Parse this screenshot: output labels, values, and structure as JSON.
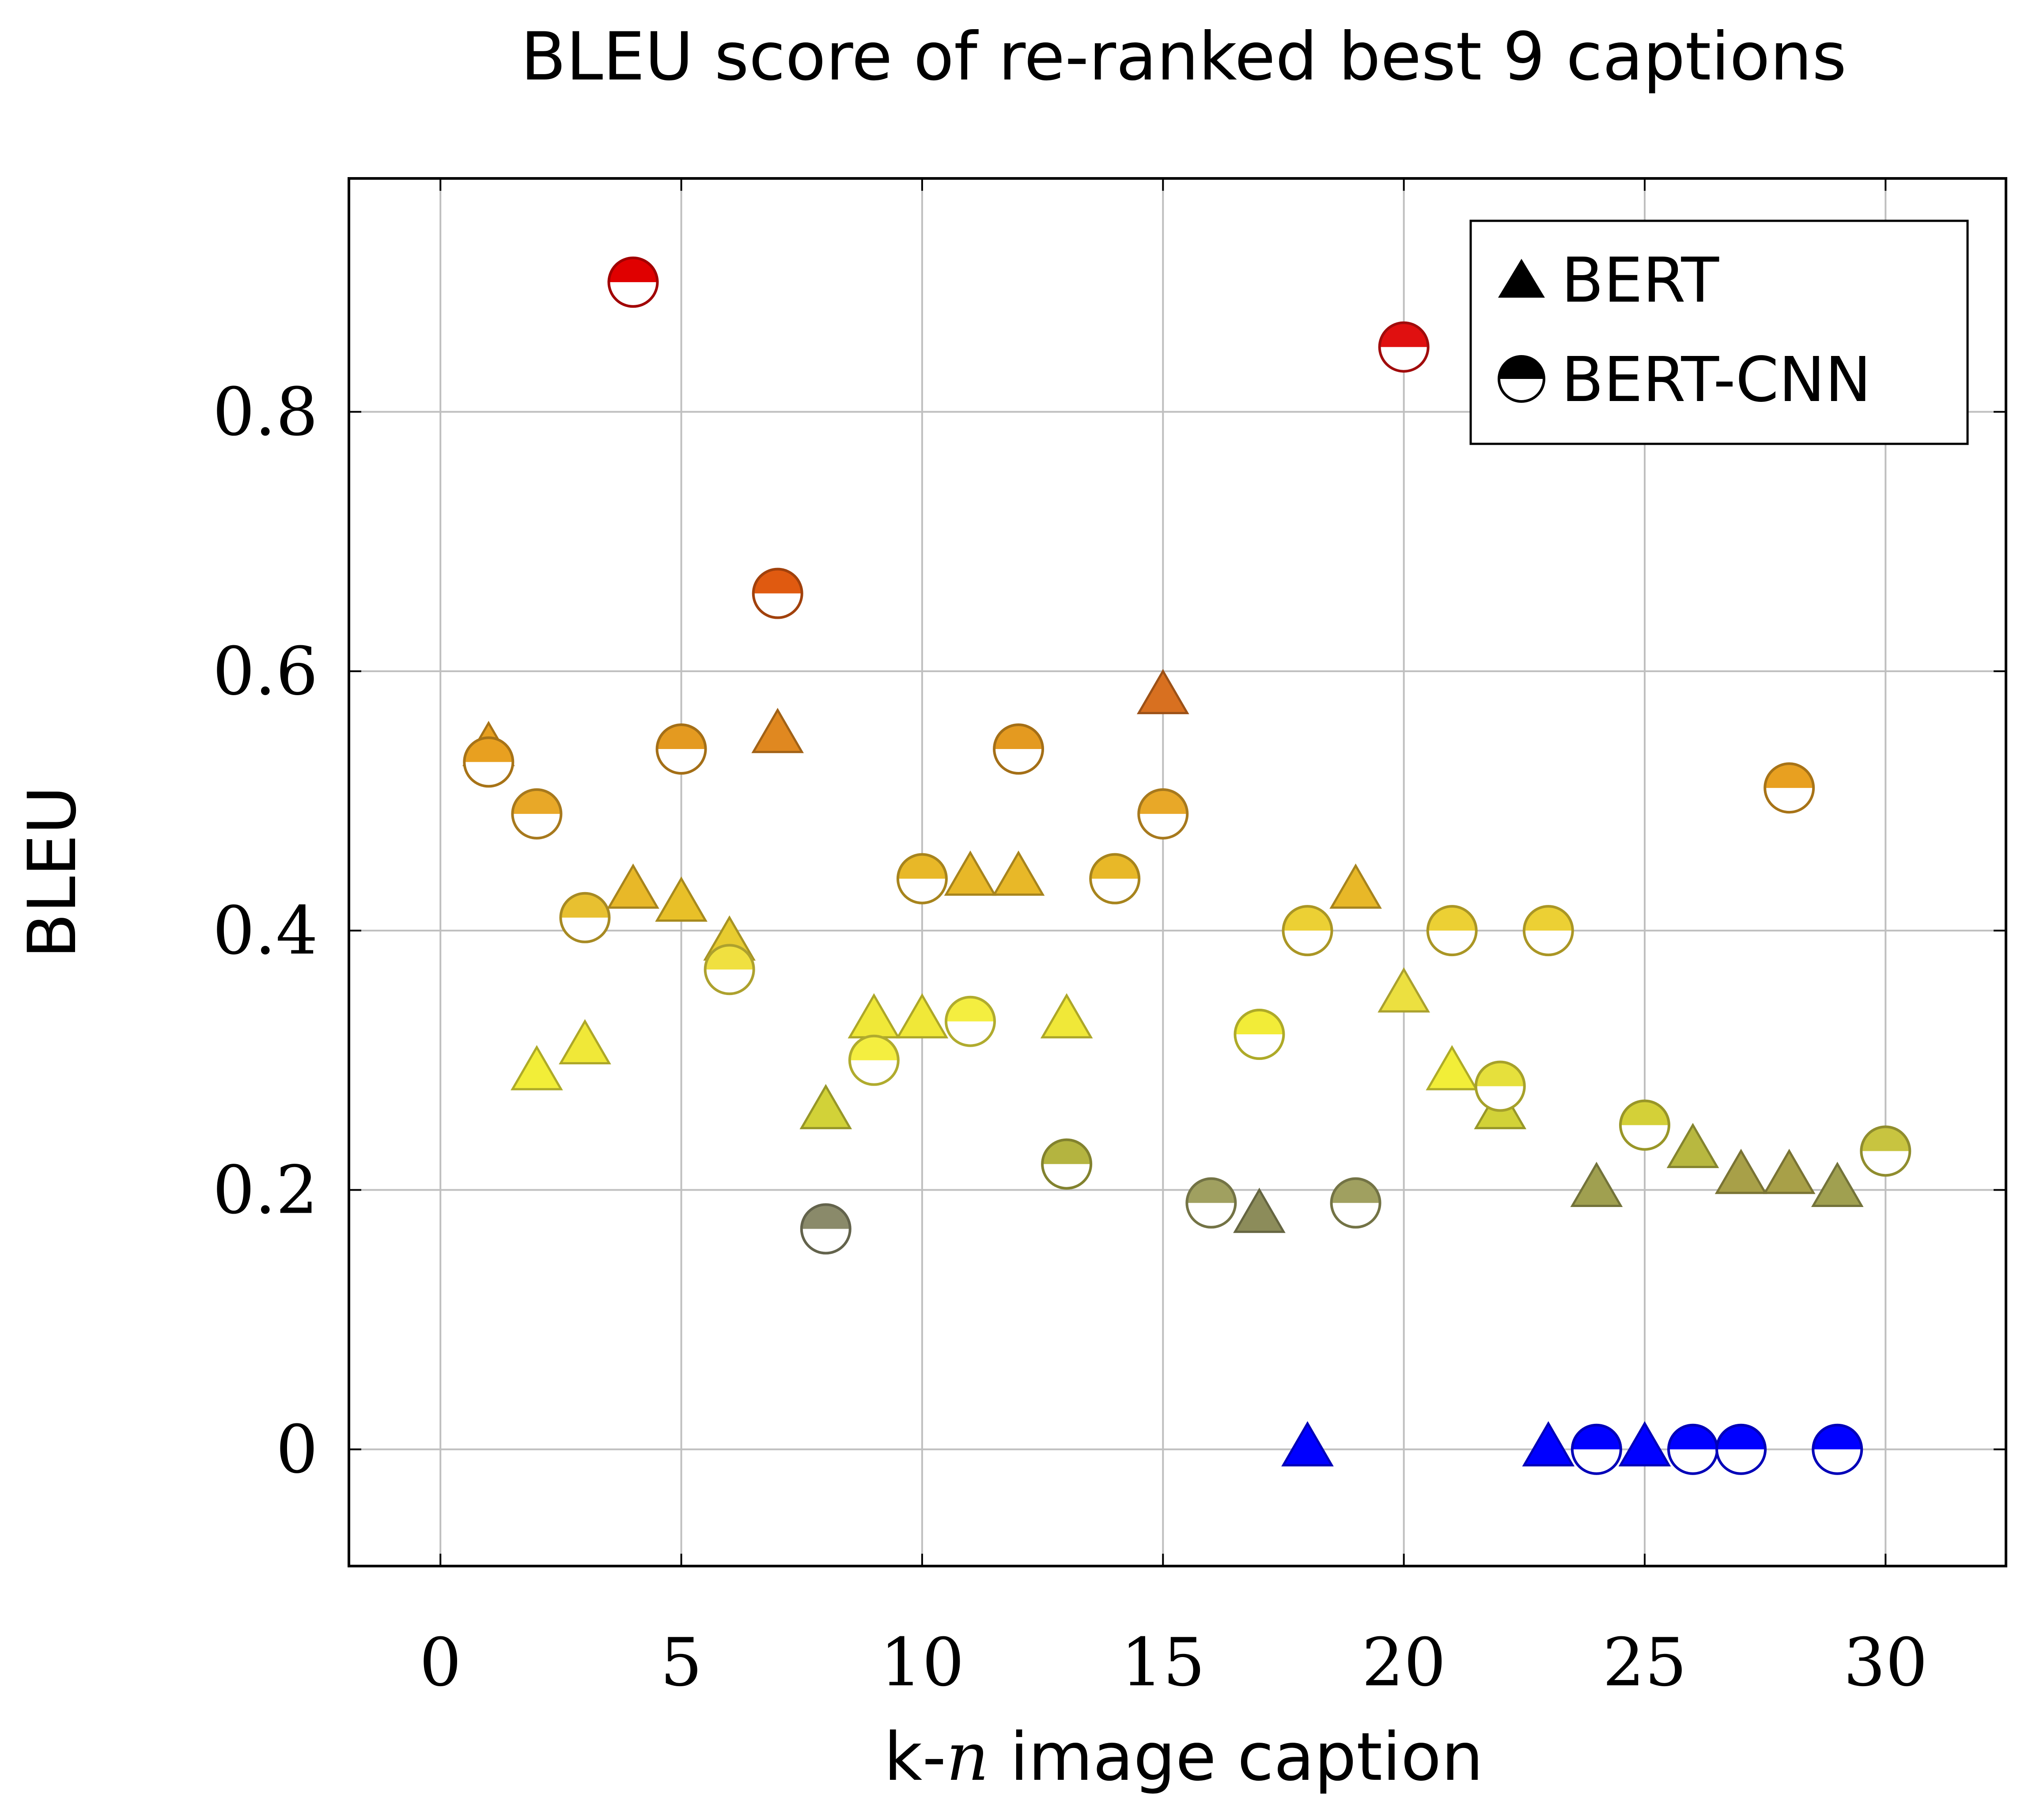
{
  "chart_data": {
    "type": "scatter",
    "title": "BLEU score of re-ranked best 9 captions",
    "xlabel_prefix": "k-",
    "xlabel_var": "n",
    "xlabel_suffix": " image caption",
    "ylabel": "BLEU",
    "xlim": [
      -1.9,
      32.5
    ],
    "ylim": [
      -0.09,
      0.98
    ],
    "xticks": [
      0,
      5,
      10,
      15,
      20,
      25,
      30
    ],
    "yticks": [
      0,
      0.2,
      0.4,
      0.6,
      0.8
    ],
    "ytick_labels": [
      "0",
      "0.2",
      "0.4",
      "0.6",
      "0.8"
    ],
    "grid": true,
    "legend_position": "top-right",
    "series": [
      {
        "name": "BERT",
        "marker": "triangle",
        "points": [
          {
            "x": 1,
            "y": 0.54,
            "color": "#e8a020"
          },
          {
            "x": 2,
            "y": 0.29,
            "color": "#f2ee38"
          },
          {
            "x": 3,
            "y": 0.31,
            "color": "#f0e838"
          },
          {
            "x": 4,
            "y": 0.43,
            "color": "#e8b828"
          },
          {
            "x": 5,
            "y": 0.42,
            "color": "#e8c028"
          },
          {
            "x": 6,
            "y": 0.39,
            "color": "#e8cc30"
          },
          {
            "x": 7,
            "y": 0.55,
            "color": "#e08820"
          },
          {
            "x": 8,
            "y": 0.26,
            "color": "#d2d238"
          },
          {
            "x": 9,
            "y": 0.33,
            "color": "#f0e838"
          },
          {
            "x": 10,
            "y": 0.33,
            "color": "#f0e838"
          },
          {
            "x": 11,
            "y": 0.44,
            "color": "#e8b828"
          },
          {
            "x": 12,
            "y": 0.44,
            "color": "#e8b828"
          },
          {
            "x": 13,
            "y": 0.33,
            "color": "#f0e838"
          },
          {
            "x": 15,
            "y": 0.58,
            "color": "#d87020"
          },
          {
            "x": 17,
            "y": 0.18,
            "color": "#8c8c5a"
          },
          {
            "x": 18,
            "y": 0.0,
            "color": "#0000ff"
          },
          {
            "x": 19,
            "y": 0.43,
            "color": "#e8b828"
          },
          {
            "x": 20,
            "y": 0.35,
            "color": "#ece040"
          },
          {
            "x": 21,
            "y": 0.29,
            "color": "#f2ee38"
          },
          {
            "x": 22,
            "y": 0.26,
            "color": "#d2d238"
          },
          {
            "x": 23,
            "y": 0.0,
            "color": "#0000ff"
          },
          {
            "x": 24,
            "y": 0.2,
            "color": "#a0a050"
          },
          {
            "x": 25,
            "y": 0.0,
            "color": "#0000ff"
          },
          {
            "x": 26,
            "y": 0.23,
            "color": "#b8b840"
          },
          {
            "x": 27,
            "y": 0.21,
            "color": "#a8a048"
          },
          {
            "x": 28,
            "y": 0.21,
            "color": "#a8a048"
          },
          {
            "x": 29,
            "y": 0.2,
            "color": "#a0a050"
          }
        ]
      },
      {
        "name": "BERT-CNN",
        "marker": "half-circle",
        "points": [
          {
            "x": 1,
            "y": 0.53,
            "color": "#e8a020"
          },
          {
            "x": 2,
            "y": 0.49,
            "color": "#e8a828"
          },
          {
            "x": 3,
            "y": 0.41,
            "color": "#e8c030"
          },
          {
            "x": 4,
            "y": 0.9,
            "color": "#e00000"
          },
          {
            "x": 5,
            "y": 0.54,
            "color": "#e49a20"
          },
          {
            "x": 6,
            "y": 0.37,
            "color": "#f0e040"
          },
          {
            "x": 7,
            "y": 0.66,
            "color": "#e05a10"
          },
          {
            "x": 8,
            "y": 0.17,
            "color": "#8a8a6a"
          },
          {
            "x": 9,
            "y": 0.3,
            "color": "#f4ee40"
          },
          {
            "x": 10,
            "y": 0.44,
            "color": "#e8b828"
          },
          {
            "x": 11,
            "y": 0.33,
            "color": "#f4ee40"
          },
          {
            "x": 12,
            "y": 0.54,
            "color": "#e49a20"
          },
          {
            "x": 13,
            "y": 0.22,
            "color": "#b4b440"
          },
          {
            "x": 14,
            "y": 0.44,
            "color": "#e8b828"
          },
          {
            "x": 15,
            "y": 0.49,
            "color": "#e8a828"
          },
          {
            "x": 16,
            "y": 0.19,
            "color": "#a0a060"
          },
          {
            "x": 17,
            "y": 0.32,
            "color": "#f2ec38"
          },
          {
            "x": 18,
            "y": 0.4,
            "color": "#ecd034"
          },
          {
            "x": 19,
            "y": 0.19,
            "color": "#a0a060"
          },
          {
            "x": 20,
            "y": 0.85,
            "color": "#e01010"
          },
          {
            "x": 21,
            "y": 0.4,
            "color": "#ecd034"
          },
          {
            "x": 22,
            "y": 0.28,
            "color": "#e6e03c"
          },
          {
            "x": 23,
            "y": 0.4,
            "color": "#ecd034"
          },
          {
            "x": 24,
            "y": 0.0,
            "color": "#0000ff"
          },
          {
            "x": 25,
            "y": 0.25,
            "color": "#d4d038"
          },
          {
            "x": 26,
            "y": 0.0,
            "color": "#0000ff"
          },
          {
            "x": 27,
            "y": 0.0,
            "color": "#0000ff"
          },
          {
            "x": 28,
            "y": 0.51,
            "color": "#e8a020"
          },
          {
            "x": 29,
            "y": 0.0,
            "color": "#0000ff"
          },
          {
            "x": 30,
            "y": 0.23,
            "color": "#c8c440"
          }
        ]
      }
    ]
  }
}
